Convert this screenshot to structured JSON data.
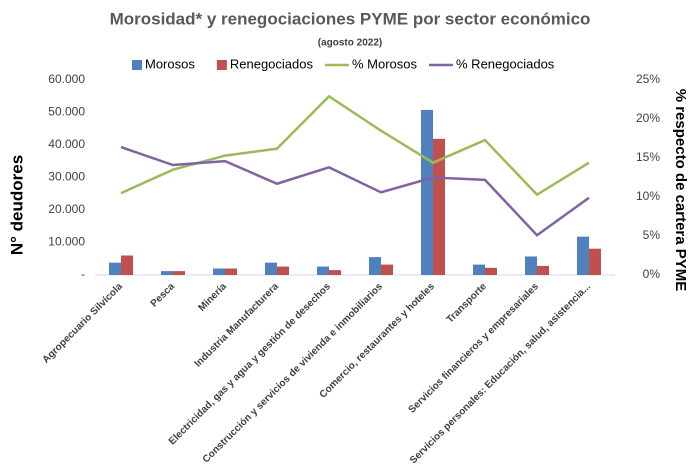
{
  "chart_data": {
    "type": "bar_line",
    "title": "Morosidad* y renegociaciones PYME por sector económico",
    "subtitle": "(agosto 2022)",
    "ylabel": "N° deudores",
    "y2label": "% respecto de cartera PYME",
    "categories": [
      "Agropecuario Silvícola",
      "Pesca",
      "Minería",
      "Industria Manufacturera",
      "Electricidad, gas y agua y gestión de desechos",
      "Construcción y servicios de vivienda e inmobiliarios",
      "Comercio, restaurantes y hoteles",
      "Transporte",
      "Servicios financieros y empresariales",
      "Servicios personales: Educación, salud, asistencia..."
    ],
    "series": [
      {
        "name": "Morosos",
        "type": "bar",
        "color": "#4f81bd",
        "values": [
          3800,
          1200,
          2000,
          3800,
          2600,
          5500,
          50800,
          3200,
          5700,
          11800
        ]
      },
      {
        "name": "Renegociados",
        "type": "bar",
        "color": "#c0504d",
        "values": [
          6000,
          1200,
          2000,
          2600,
          1500,
          3200,
          41900,
          2200,
          2800,
          8100
        ]
      },
      {
        "name": "% Morosos",
        "type": "line",
        "axis": "y2",
        "color": "#9bbb59",
        "values": [
          10.5,
          13.5,
          15.3,
          16.2,
          22.9,
          18.5,
          14.4,
          17.3,
          10.3,
          14.4
        ]
      },
      {
        "name": "% Renegociados",
        "type": "line",
        "axis": "y2",
        "color": "#8064a2",
        "values": [
          16.4,
          14.1,
          14.6,
          11.7,
          13.8,
          10.6,
          12.5,
          12.2,
          5.1,
          9.9
        ]
      }
    ],
    "ylim": [
      0,
      60000
    ],
    "yticks": [
      {
        "value": 0,
        "label": "-"
      },
      {
        "value": 10000,
        "label": "10.000"
      },
      {
        "value": 20000,
        "label": "20.000"
      },
      {
        "value": 30000,
        "label": "30.000"
      },
      {
        "value": 40000,
        "label": "40.000"
      },
      {
        "value": 50000,
        "label": "50.000"
      },
      {
        "value": 60000,
        "label": "60.000"
      }
    ],
    "y2lim": [
      0,
      25
    ],
    "y2ticks": [
      {
        "value": 0,
        "label": "0%"
      },
      {
        "value": 5,
        "label": "5%"
      },
      {
        "value": 10,
        "label": "10%"
      },
      {
        "value": 15,
        "label": "15%"
      },
      {
        "value": 20,
        "label": "20%"
      },
      {
        "value": 25,
        "label": "25%"
      }
    ],
    "legend": "top"
  }
}
